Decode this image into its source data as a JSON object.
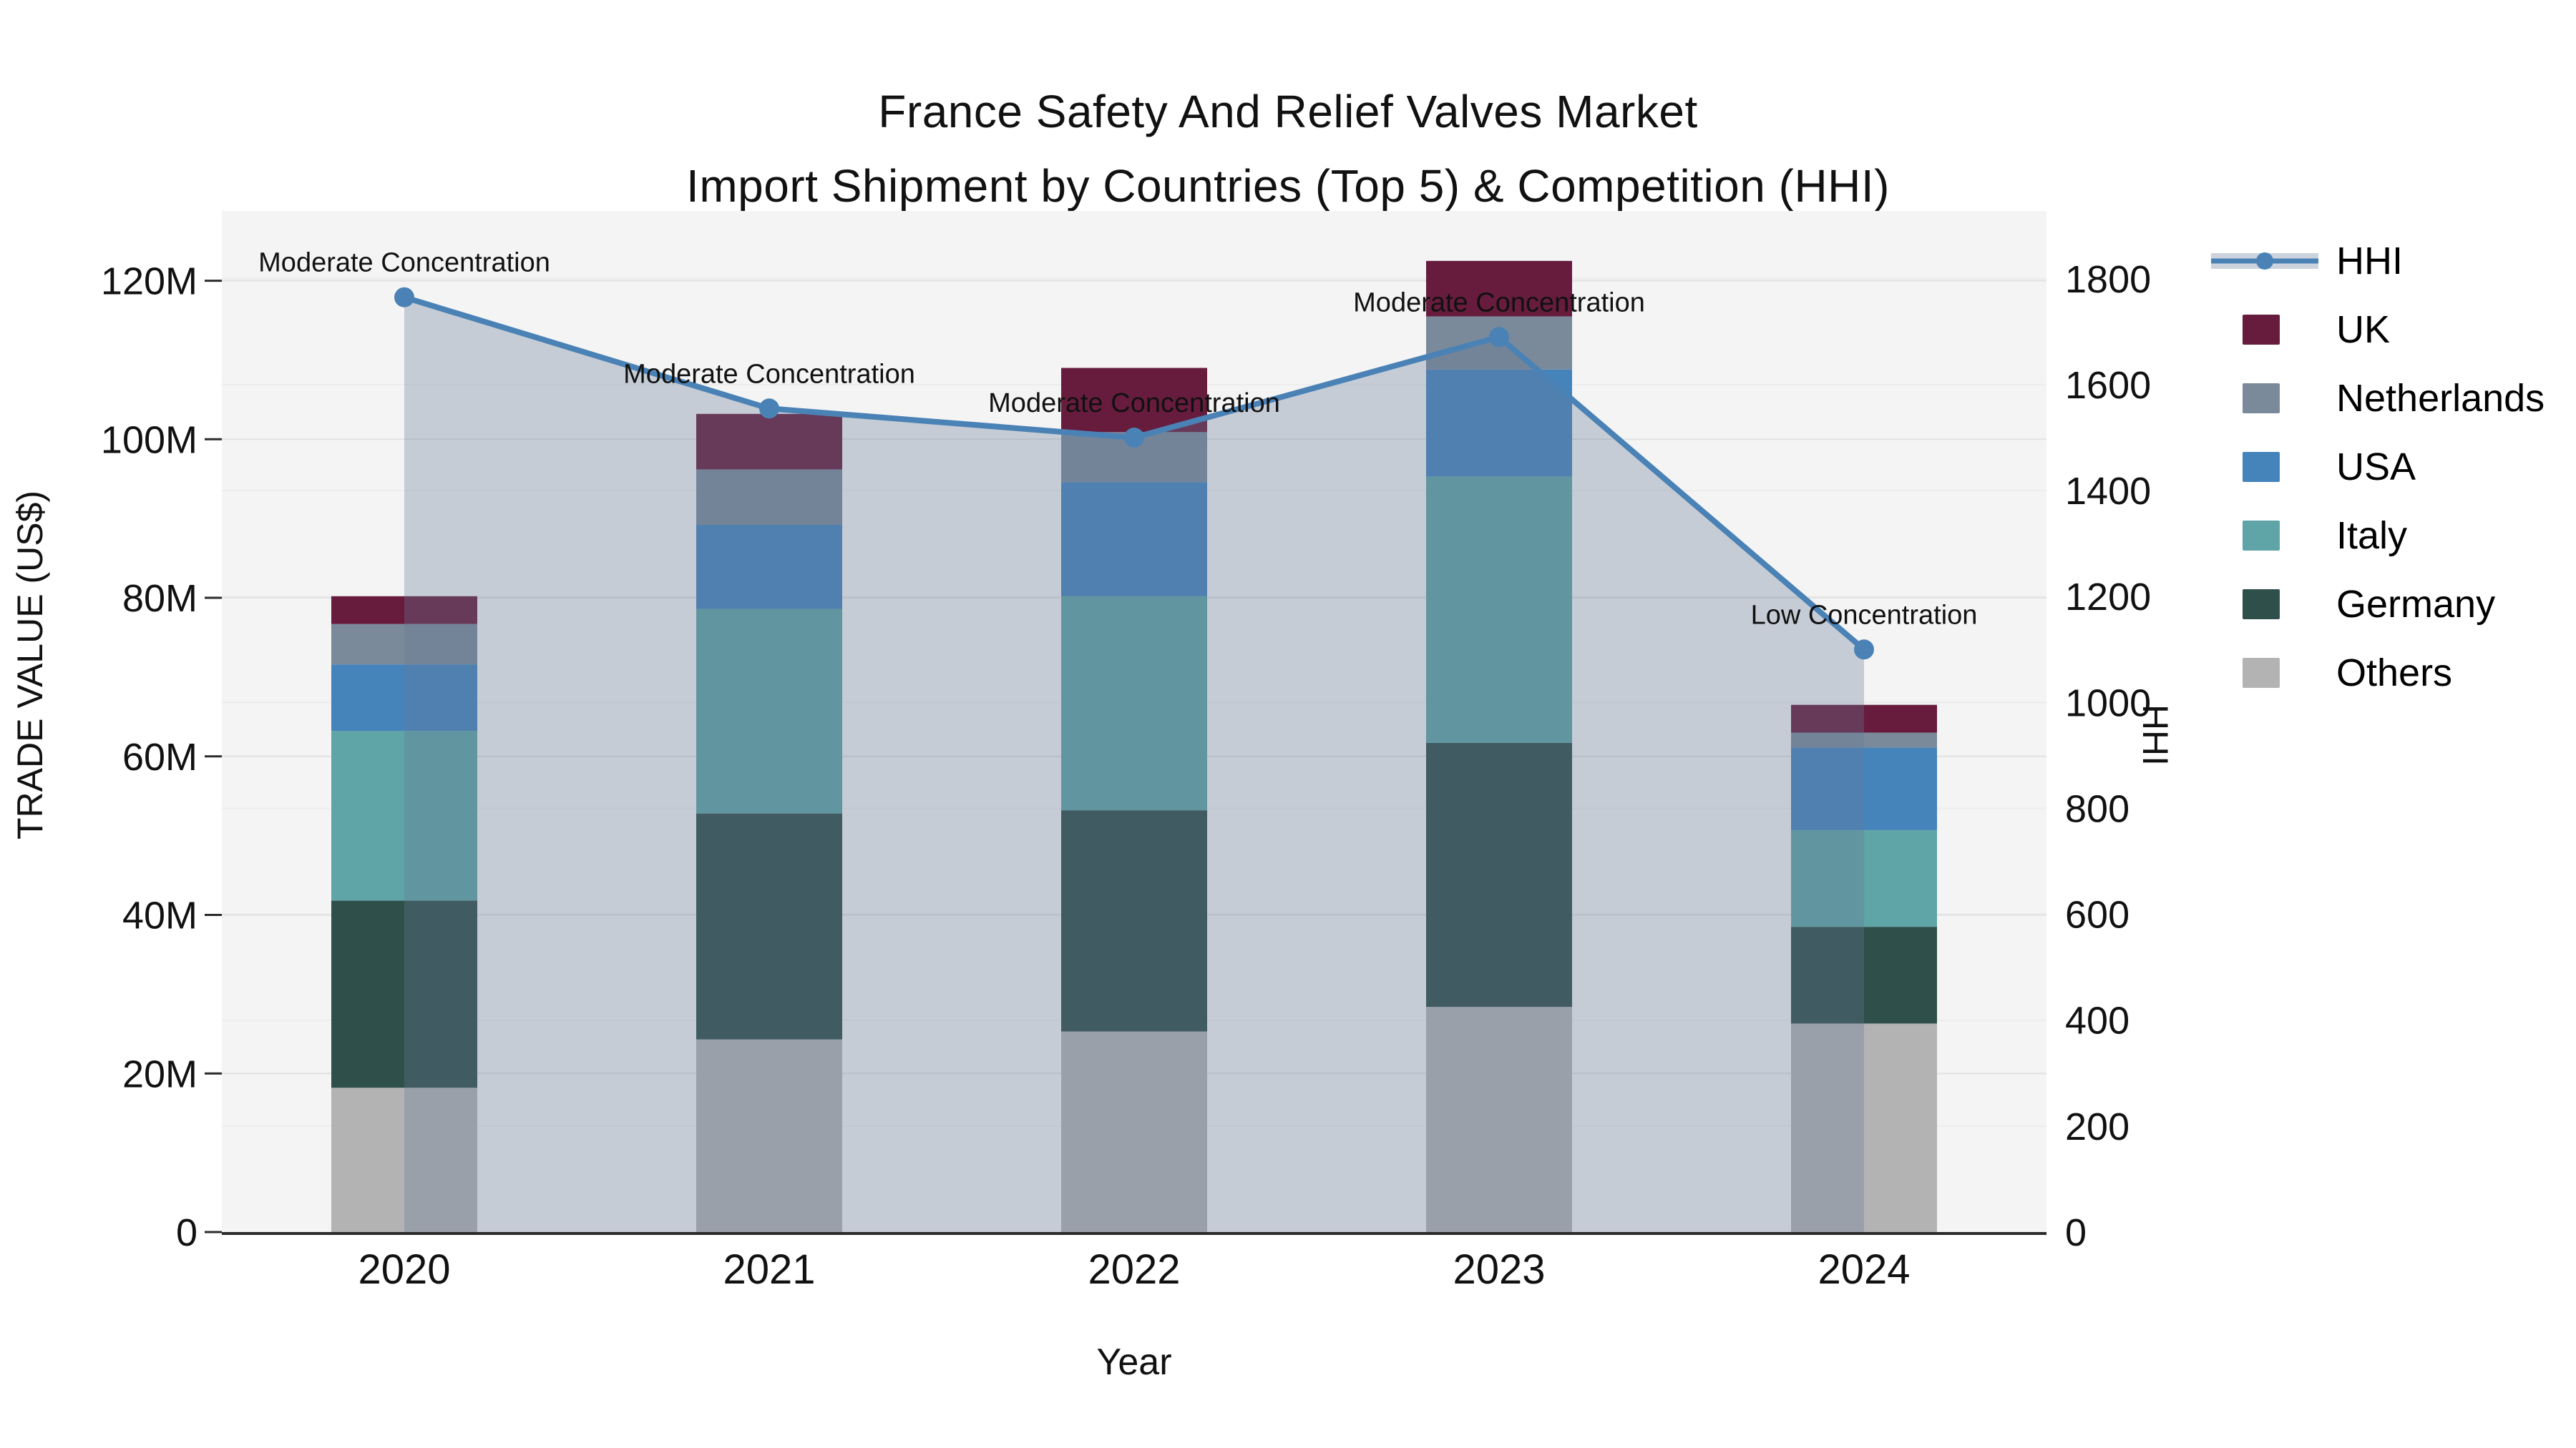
{
  "page": {
    "title_line1": "France Safety And Relief Valves Market",
    "title_line2": "Import Shipment by Countries (Top 5) & Competition (HHI)"
  },
  "chart_data": {
    "type": "bar+line",
    "title": "France Safety And Relief Valves Market",
    "subtitle": "Import Shipment by Countries (Top 5) & Competition (HHI)",
    "categories": [
      "2020",
      "2021",
      "2022",
      "2023",
      "2024"
    ],
    "xlabel": "Year",
    "ylabel_left": "TRADE VALUE (US$)",
    "ylabel_right": "HHI",
    "bar_units": "millions of US$",
    "stack_order_bottom_to_top": [
      "Others",
      "Germany",
      "Italy",
      "USA",
      "Netherlands",
      "UK"
    ],
    "series": [
      {
        "name": "Others",
        "color": "#b3b3b3",
        "values": [
          18.2,
          24.3,
          25.3,
          28.4,
          26.3
        ]
      },
      {
        "name": "Germany",
        "color": "#2f4f4a",
        "values": [
          23.6,
          28.5,
          27.9,
          33.3,
          12.2
        ]
      },
      {
        "name": "Italy",
        "color": "#5fa4a6",
        "values": [
          21.4,
          25.8,
          27.0,
          33.6,
          12.2
        ]
      },
      {
        "name": "USA",
        "color": "#4583bb",
        "values": [
          8.4,
          10.6,
          14.4,
          13.5,
          10.4
        ]
      },
      {
        "name": "Netherlands",
        "color": "#7a8a9b",
        "values": [
          5.1,
          7.0,
          6.3,
          6.7,
          1.9
        ]
      },
      {
        "name": "UK",
        "color": "#671c3e",
        "values": [
          3.5,
          7.0,
          8.1,
          7.0,
          3.5
        ]
      }
    ],
    "totals_M": [
      80.2,
      103.2,
      109.0,
      122.5,
      66.5
    ],
    "hhi_line": {
      "name": "HHI",
      "color": "#4a82b6",
      "area_fill": "rgba(104,122,148,0.32)",
      "values": [
        1765,
        1555,
        1500,
        1690,
        1100
      ]
    },
    "annotations": [
      {
        "x": "2020",
        "text": "Moderate Concentration"
      },
      {
        "x": "2021",
        "text": "Moderate Concentration"
      },
      {
        "x": "2022",
        "text": "Moderate Concentration"
      },
      {
        "x": "2023",
        "text": "Moderate Concentration"
      },
      {
        "x": "2024",
        "text": "Low Concentration"
      }
    ],
    "yticks_left": {
      "values": [
        0,
        20,
        40,
        60,
        80,
        100,
        120
      ],
      "labels": [
        "0",
        "20M",
        "40M",
        "60M",
        "80M",
        "100M",
        "120M"
      ]
    },
    "yticks_right": {
      "values": [
        0,
        200,
        400,
        600,
        800,
        1000,
        1200,
        1400,
        1600,
        1800
      ],
      "labels": [
        "0",
        "200",
        "400",
        "600",
        "800",
        "1000",
        "1200",
        "1400",
        "1600",
        "1800"
      ]
    },
    "ylim_left_M": [
      0,
      128.8
    ],
    "ylim_right": [
      0,
      1928
    ],
    "grid": true,
    "legend_position": "right",
    "legend_order": [
      "HHI",
      "UK",
      "Netherlands",
      "USA",
      "Italy",
      "Germany",
      "Others"
    ],
    "plot_bg": "#f4f4f4",
    "grid_color_left": "#e1e1e1",
    "grid_color_right": "#ececec",
    "axis_line_color": "#2b2b2b",
    "annotation_color": "#111111"
  }
}
